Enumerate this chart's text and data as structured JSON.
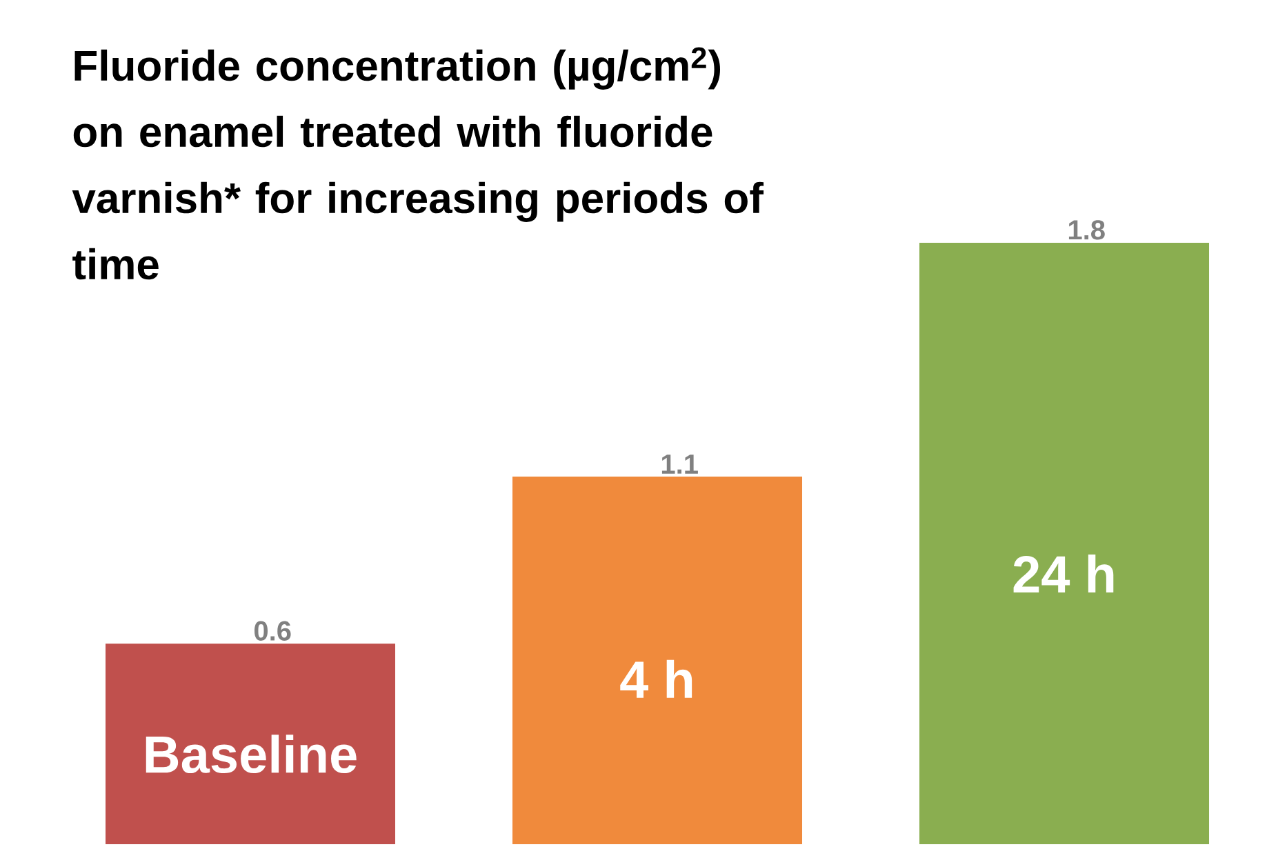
{
  "chart_data": {
    "type": "bar",
    "title": "Fluoride concentration (µg/cm$^{2}$) on enamel treated with fluoride varnish* for increasing periods of time",
    "categories": [
      "Baseline",
      "4 h",
      "24 h"
    ],
    "values": [
      0.6,
      1.1,
      1.8
    ],
    "colors": [
      "#c0504d",
      "#f08a3c",
      "#8aae50"
    ],
    "data_labels": true
  }
}
